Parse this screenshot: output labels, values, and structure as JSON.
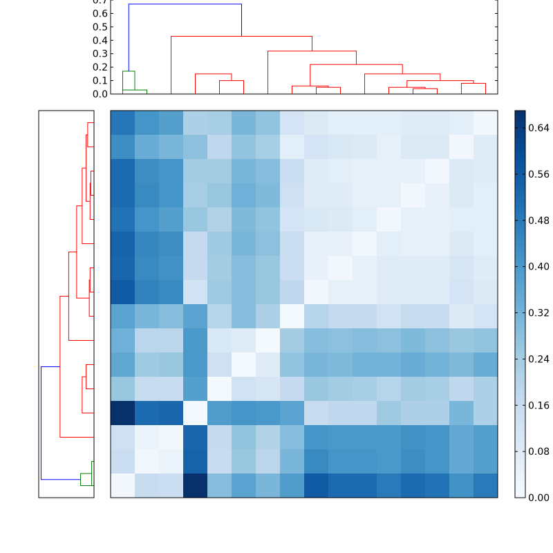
{
  "chart_data": {
    "type": "heatmap",
    "title": "",
    "rows": 16,
    "cols": 16,
    "cell_values": [
      [
        0.49,
        0.41,
        0.38,
        0.22,
        0.23,
        0.31,
        0.27,
        0.12,
        0.09,
        0.07,
        0.07,
        0.07,
        0.08,
        0.08,
        0.07,
        0.02
      ],
      [
        0.43,
        0.34,
        0.31,
        0.28,
        0.18,
        0.27,
        0.23,
        0.07,
        0.12,
        0.1,
        0.09,
        0.06,
        0.09,
        0.09,
        0.02,
        0.08
      ],
      [
        0.52,
        0.43,
        0.41,
        0.24,
        0.24,
        0.31,
        0.29,
        0.15,
        0.08,
        0.07,
        0.06,
        0.06,
        0.05,
        0.02,
        0.09,
        0.08
      ],
      [
        0.52,
        0.44,
        0.41,
        0.23,
        0.26,
        0.33,
        0.3,
        0.14,
        0.08,
        0.08,
        0.06,
        0.06,
        0.02,
        0.05,
        0.09,
        0.07
      ],
      [
        0.5,
        0.41,
        0.38,
        0.26,
        0.21,
        0.3,
        0.27,
        0.12,
        0.1,
        0.09,
        0.07,
        0.02,
        0.06,
        0.06,
        0.07,
        0.07
      ],
      [
        0.54,
        0.45,
        0.43,
        0.17,
        0.25,
        0.31,
        0.28,
        0.15,
        0.06,
        0.05,
        0.02,
        0.07,
        0.06,
        0.06,
        0.09,
        0.07
      ],
      [
        0.53,
        0.44,
        0.42,
        0.17,
        0.24,
        0.29,
        0.26,
        0.15,
        0.05,
        0.02,
        0.06,
        0.08,
        0.08,
        0.08,
        0.11,
        0.08
      ],
      [
        0.56,
        0.46,
        0.44,
        0.13,
        0.25,
        0.29,
        0.26,
        0.18,
        0.02,
        0.06,
        0.06,
        0.08,
        0.08,
        0.08,
        0.12,
        0.09
      ],
      [
        0.37,
        0.31,
        0.29,
        0.37,
        0.2,
        0.29,
        0.22,
        0.01,
        0.2,
        0.17,
        0.17,
        0.13,
        0.16,
        0.16,
        0.09,
        0.12
      ],
      [
        0.33,
        0.19,
        0.19,
        0.4,
        0.1,
        0.08,
        0.01,
        0.24,
        0.29,
        0.28,
        0.29,
        0.28,
        0.3,
        0.28,
        0.26,
        0.27
      ],
      [
        0.36,
        0.25,
        0.26,
        0.4,
        0.14,
        0.01,
        0.08,
        0.27,
        0.31,
        0.3,
        0.32,
        0.32,
        0.34,
        0.32,
        0.3,
        0.34
      ],
      [
        0.26,
        0.16,
        0.16,
        0.38,
        0.01,
        0.13,
        0.11,
        0.17,
        0.26,
        0.24,
        0.23,
        0.2,
        0.24,
        0.23,
        0.18,
        0.22
      ],
      [
        0.67,
        0.52,
        0.53,
        0.01,
        0.39,
        0.41,
        0.4,
        0.37,
        0.16,
        0.18,
        0.18,
        0.25,
        0.22,
        0.22,
        0.31,
        0.22
      ],
      [
        0.14,
        0.04,
        0.02,
        0.53,
        0.17,
        0.27,
        0.21,
        0.29,
        0.41,
        0.4,
        0.4,
        0.4,
        0.42,
        0.41,
        0.35,
        0.38
      ],
      [
        0.15,
        0.02,
        0.04,
        0.54,
        0.16,
        0.26,
        0.19,
        0.31,
        0.44,
        0.41,
        0.41,
        0.4,
        0.43,
        0.41,
        0.35,
        0.38
      ],
      [
        0.02,
        0.16,
        0.15,
        0.68,
        0.29,
        0.37,
        0.31,
        0.39,
        0.56,
        0.52,
        0.52,
        0.48,
        0.52,
        0.5,
        0.42,
        0.48
      ]
    ],
    "colormap": "Blues",
    "vmin": 0.0,
    "vmax": 0.67,
    "colorbar": {
      "ticks": [
        0.0,
        0.08,
        0.16,
        0.24,
        0.32,
        0.4,
        0.48,
        0.56,
        0.64
      ],
      "tick_labels": [
        "0.00",
        "0.08",
        "0.16",
        "0.24",
        "0.32",
        "0.40",
        "0.48",
        "0.56",
        "0.64"
      ]
    },
    "top_dendrogram": {
      "ylim": [
        0.0,
        0.7
      ],
      "ticks": [
        0.0,
        0.1,
        0.2,
        0.3,
        0.4,
        0.5,
        0.6,
        0.7
      ],
      "tick_labels": [
        "0.0",
        "0.1",
        "0.2",
        "0.3",
        "0.4",
        "0.5",
        "0.6",
        "0.7"
      ],
      "links": [
        {
          "x": [
            5,
            5,
            15,
            15
          ],
          "y": [
            0.0,
            0.03,
            0.03,
            0.0
          ],
          "color": "#008000"
        },
        {
          "x": [
            5,
            5,
            10,
            10
          ],
          "y": [
            0.0,
            0.17,
            0.17,
            0.03
          ],
          "color": "#008000"
        },
        {
          "x": [
            45,
            45,
            55,
            55
          ],
          "y": [
            0.0,
            0.1,
            0.1,
            0.0
          ],
          "color": "#ff0000"
        },
        {
          "x": [
            35,
            35,
            50,
            50
          ],
          "y": [
            0.0,
            0.15,
            0.15,
            0.1
          ],
          "color": "#ff0000"
        },
        {
          "x": [
            85,
            85,
            95,
            95
          ],
          "y": [
            0.0,
            0.05,
            0.05,
            0.0
          ],
          "color": "#ff0000"
        },
        {
          "x": [
            75,
            75,
            90,
            90
          ],
          "y": [
            0.0,
            0.06,
            0.06,
            0.05
          ],
          "color": "#ff0000"
        },
        {
          "x": [
            125,
            125,
            135,
            135
          ],
          "y": [
            0.0,
            0.04,
            0.04,
            0.0
          ],
          "color": "#ff0000"
        },
        {
          "x": [
            115,
            115,
            130,
            130
          ],
          "y": [
            0.0,
            0.05,
            0.05,
            0.04
          ],
          "color": "#ff0000"
        },
        {
          "x": [
            145,
            145,
            155,
            155
          ],
          "y": [
            0.0,
            0.08,
            0.08,
            0.0
          ],
          "color": "#ff0000"
        },
        {
          "x": [
            122.5,
            122.5,
            150,
            150
          ],
          "y": [
            0.05,
            0.1,
            0.1,
            0.08
          ],
          "color": "#ff0000"
        },
        {
          "x": [
            105,
            105,
            136.25,
            136.25
          ],
          "y": [
            0.0,
            0.15,
            0.15,
            0.1
          ],
          "color": "#ff0000"
        },
        {
          "x": [
            82.5,
            82.5,
            120.625,
            120.625
          ],
          "y": [
            0.06,
            0.22,
            0.22,
            0.15
          ],
          "color": "#ff0000"
        },
        {
          "x": [
            65,
            65,
            101.5625,
            101.5625
          ],
          "y": [
            0.0,
            0.32,
            0.32,
            0.22
          ],
          "color": "#ff0000"
        },
        {
          "x": [
            25,
            25,
            83.28125,
            83.28125
          ],
          "y": [
            0.0,
            0.43,
            0.43,
            0.32
          ],
          "color": "#ff0000"
        },
        {
          "x": [
            7.5,
            7.5,
            54.140625,
            54.140625
          ],
          "y": [
            0.17,
            0.67,
            0.67,
            0.43
          ],
          "color": "#0000ff"
        }
      ]
    }
  }
}
